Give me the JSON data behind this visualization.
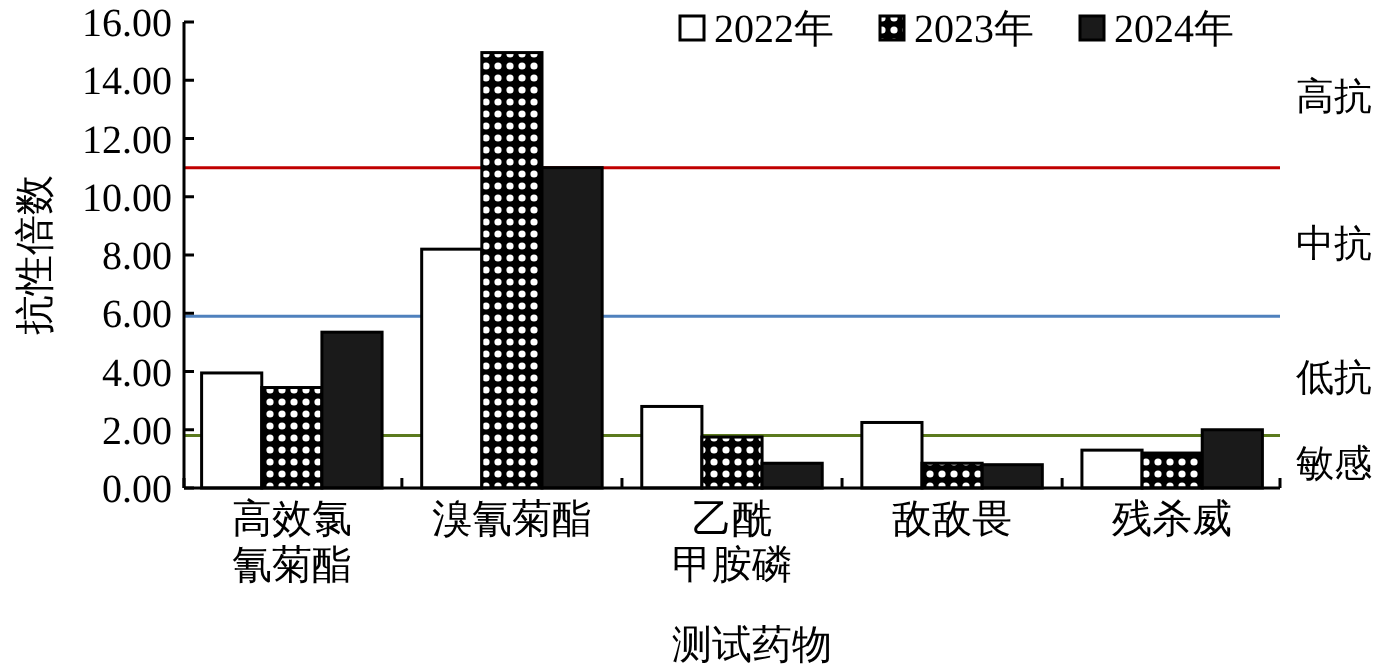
{
  "chart_data": {
    "type": "bar",
    "xlabel": "测试药物",
    "ylabel": "抗性倍数",
    "categories": [
      "高效氯氰菊酯",
      "溴氰菊酯",
      "乙酰甲胺磷",
      "敌敌畏",
      "残杀威"
    ],
    "series": [
      {
        "name": "2022年",
        "color": "#ffffff",
        "values": [
          3.95,
          8.2,
          2.8,
          2.25,
          1.3
        ]
      },
      {
        "name": "2023年",
        "color": "#000000",
        "values": [
          3.45,
          14.95,
          1.75,
          0.85,
          1.2
        ]
      },
      {
        "name": "2024年",
        "color": "#1a1a1a",
        "values": [
          5.35,
          11.0,
          0.85,
          0.8,
          2.0
        ]
      }
    ],
    "ylim": [
      0,
      16
    ],
    "yticks": [
      {
        "value": 0,
        "label": "0.00"
      },
      {
        "value": 2,
        "label": "2.00"
      },
      {
        "value": 4,
        "label": "4.00"
      },
      {
        "value": 6,
        "label": "6.00"
      },
      {
        "value": 8,
        "label": "8.00"
      },
      {
        "value": 10,
        "label": "10.00"
      },
      {
        "value": 12,
        "label": "12.00"
      },
      {
        "value": 14,
        "label": "14.00"
      },
      {
        "value": 16,
        "label": "16.00"
      }
    ],
    "ref_lines": [
      {
        "axis": "y",
        "value": 11,
        "color": "#c00000"
      },
      {
        "axis": "y",
        "value": 5.9,
        "color": "#4f81bd"
      },
      {
        "axis": "y",
        "value": 1.8,
        "color": "#5b7a1e"
      }
    ],
    "annotations": [
      "高抗",
      "中抗",
      "低抗",
      "敏感"
    ],
    "grid": false,
    "legend": "top right"
  }
}
